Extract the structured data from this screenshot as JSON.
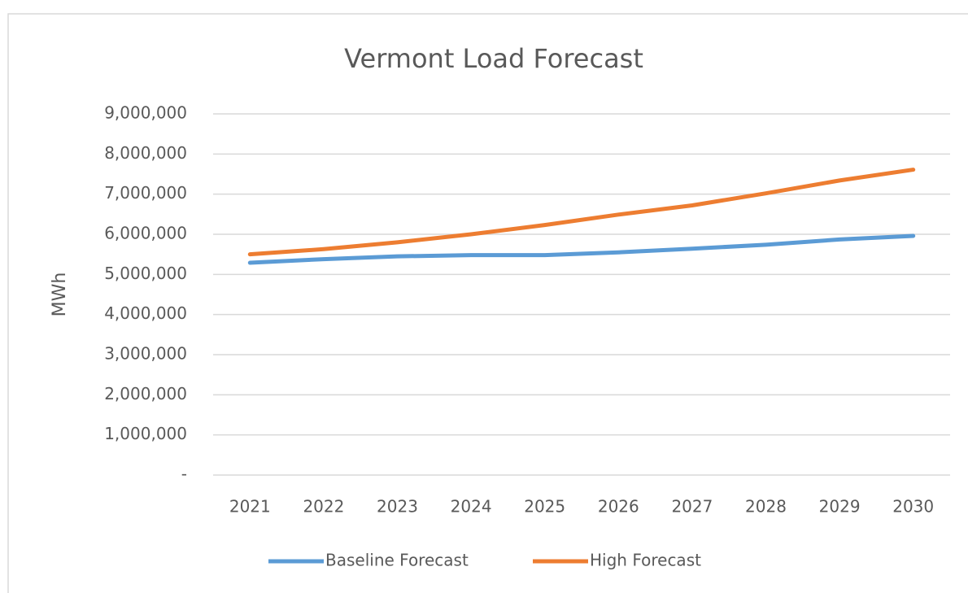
{
  "chart_data": {
    "type": "line",
    "title": "Vermont Load Forecast",
    "y_label": "MWh",
    "categories": [
      "2021",
      "2022",
      "2023",
      "2024",
      "2025",
      "2026",
      "2027",
      "2028",
      "2029",
      "2030"
    ],
    "series": [
      {
        "name": "Baseline Forecast",
        "color": "#5b9bd5",
        "values": [
          5290000,
          5380000,
          5450000,
          5480000,
          5480000,
          5550000,
          5640000,
          5740000,
          5870000,
          5960000
        ]
      },
      {
        "name": "High Forecast",
        "color": "#ed7d31",
        "values": [
          5500000,
          5630000,
          5800000,
          6000000,
          6230000,
          6490000,
          6720000,
          7020000,
          7340000,
          7610000
        ]
      }
    ],
    "ylim": [
      0,
      9000000
    ],
    "yticks": [
      {
        "value": 0,
        "label": "-"
      },
      {
        "value": 1000000,
        "label": "1,000,000"
      },
      {
        "value": 2000000,
        "label": "2,000,000"
      },
      {
        "value": 3000000,
        "label": "3,000,000"
      },
      {
        "value": 4000000,
        "label": "4,000,000"
      },
      {
        "value": 5000000,
        "label": "5,000,000"
      },
      {
        "value": 6000000,
        "label": "6,000,000"
      },
      {
        "value": 7000000,
        "label": "7,000,000"
      },
      {
        "value": 8000000,
        "label": "8,000,000"
      },
      {
        "value": 9000000,
        "label": "9,000,000"
      }
    ],
    "grid": true,
    "legend": "bottom"
  }
}
